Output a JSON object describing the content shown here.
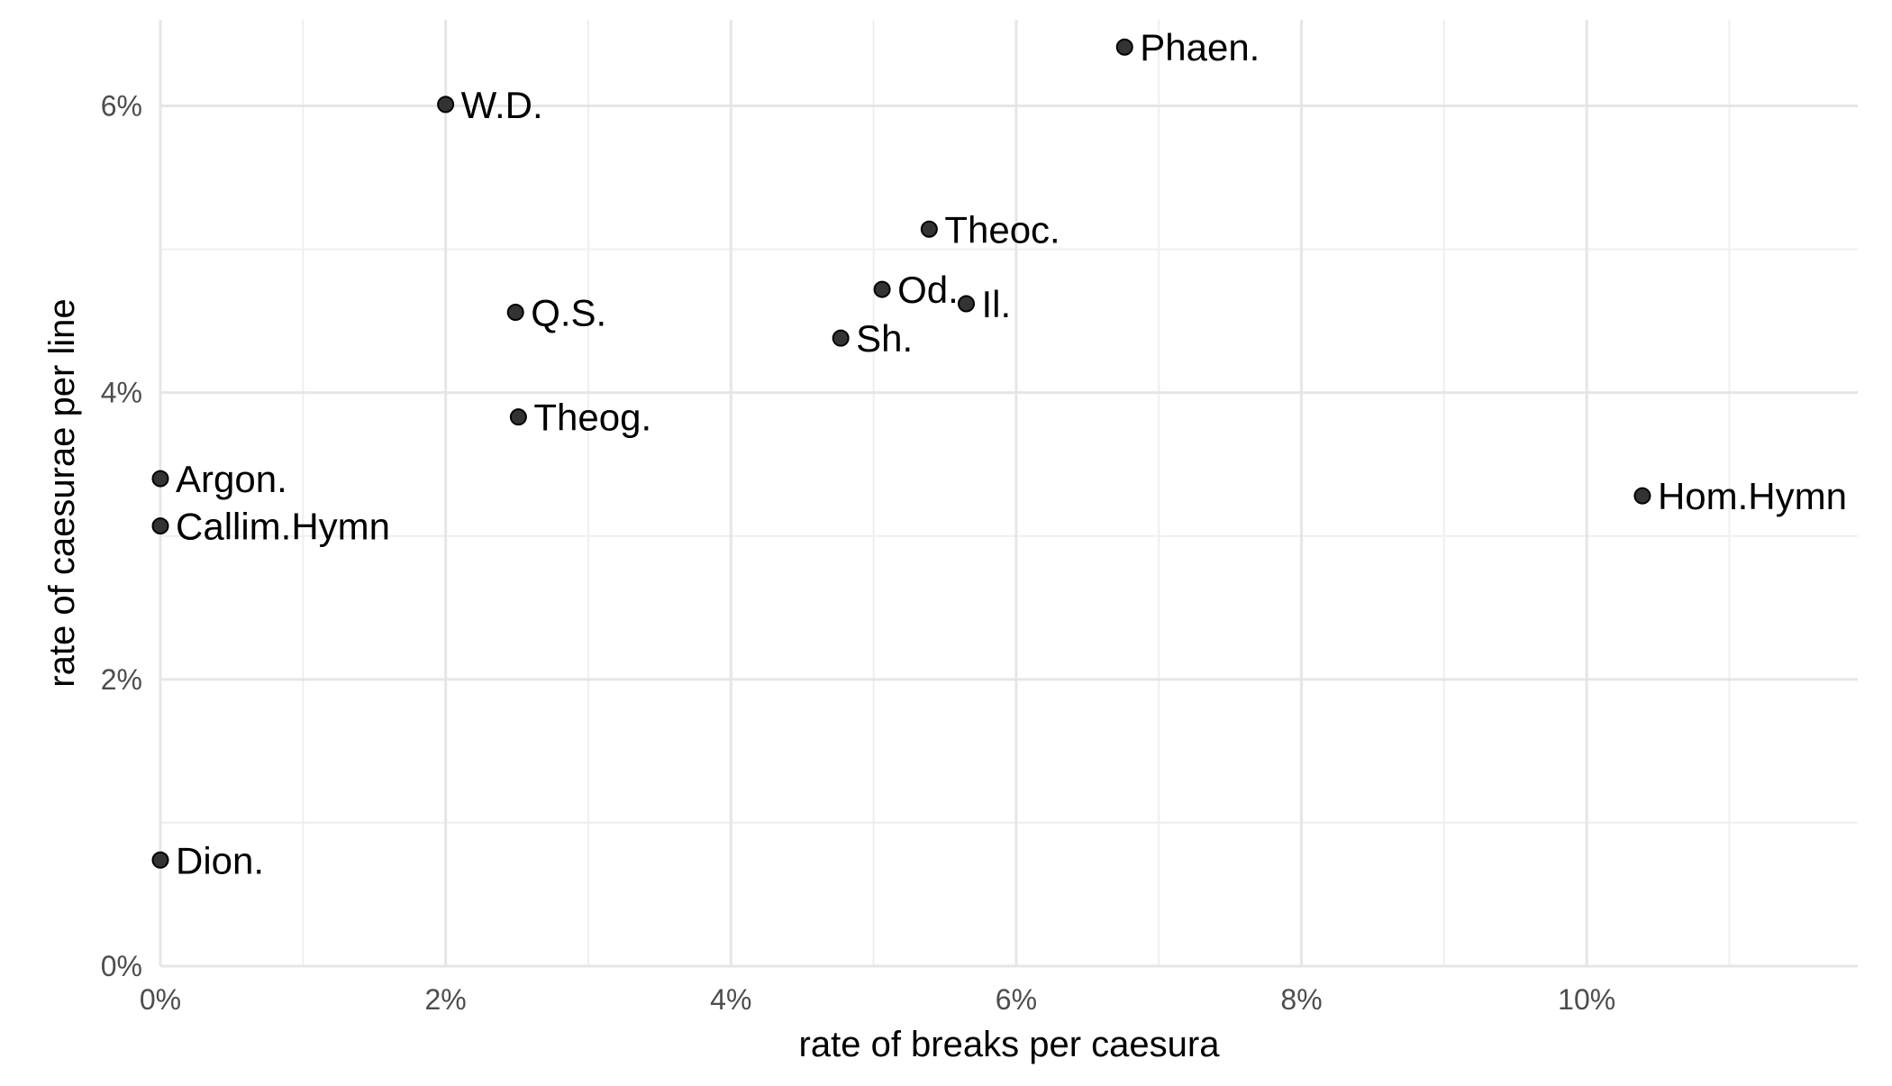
{
  "chart_data": {
    "type": "scatter",
    "title": "",
    "xlabel": "rate of breaks per caesura",
    "ylabel": "rate of caesurae per line",
    "xlim": [
      0,
      0.119
    ],
    "ylim": [
      0,
      0.066
    ],
    "x_ticks": [
      0,
      0.02,
      0.04,
      0.06,
      0.08,
      0.1
    ],
    "x_tick_labels": [
      "0%",
      "2%",
      "4%",
      "6%",
      "8%",
      "10%"
    ],
    "y_ticks": [
      0,
      0.02,
      0.04,
      0.06
    ],
    "y_tick_labels": [
      "0%",
      "2%",
      "4%",
      "6%"
    ],
    "grid": true,
    "legend": "none",
    "point_color": "#333333",
    "points": [
      {
        "label": "Phaen.",
        "x": 0.0676,
        "y": 0.0641
      },
      {
        "label": "W.D.",
        "x": 0.02,
        "y": 0.0601
      },
      {
        "label": "Theoc.",
        "x": 0.0539,
        "y": 0.0514
      },
      {
        "label": "Od.",
        "x": 0.0506,
        "y": 0.0472
      },
      {
        "label": "Il.",
        "x": 0.0565,
        "y": 0.0462
      },
      {
        "label": "Q.S.",
        "x": 0.0249,
        "y": 0.0456
      },
      {
        "label": "Sh.",
        "x": 0.0477,
        "y": 0.0438
      },
      {
        "label": "Theog.",
        "x": 0.0251,
        "y": 0.0383
      },
      {
        "label": "Argon.",
        "x": 0.0,
        "y": 0.034
      },
      {
        "label": "Callim.Hymn",
        "x": 0.0,
        "y": 0.0307
      },
      {
        "label": "Hom.Hymn",
        "x": 0.1039,
        "y": 0.0328
      },
      {
        "label": "Dion.",
        "x": 0.0,
        "y": 0.0074
      }
    ]
  }
}
